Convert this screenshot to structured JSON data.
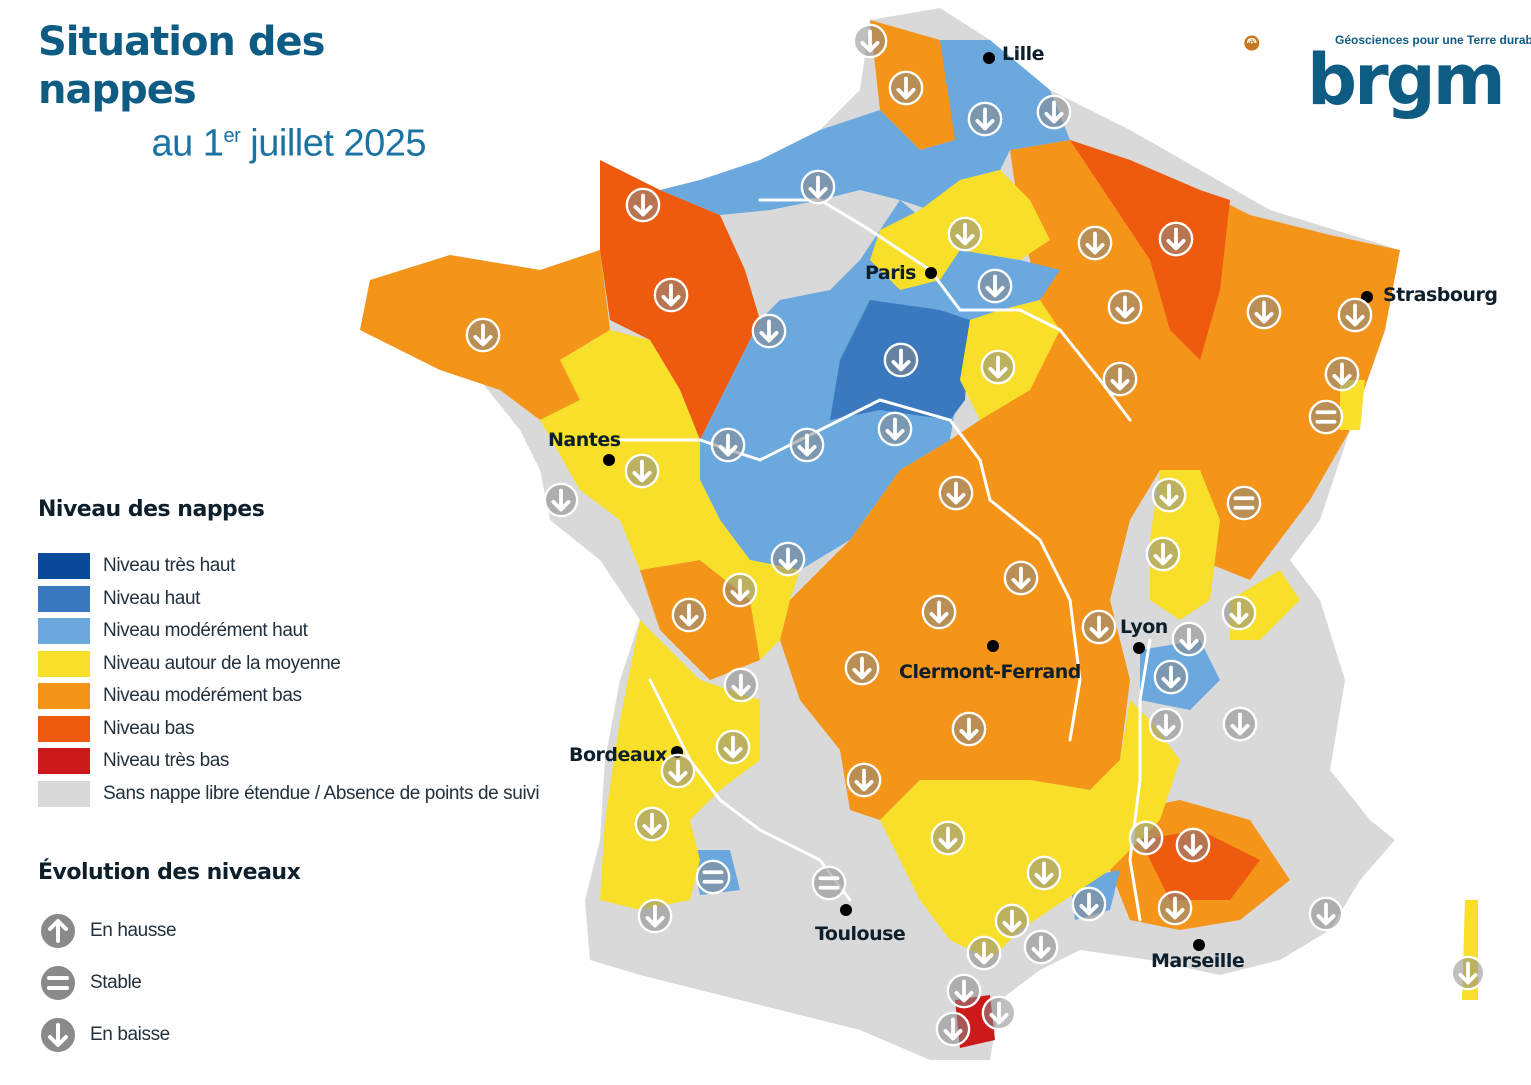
{
  "title": {
    "line1": "Situation des nappes",
    "line2_prefix": "au 1",
    "line2_sup": "er",
    "line2_suffix": " juillet 2025"
  },
  "logo": {
    "tagline": "Géosciences pour une Terre durable",
    "wordmark": "brgm",
    "colors": {
      "swirl": "#c8761c",
      "text": "#0e5c83"
    }
  },
  "legend_levels": {
    "title": "Niveau des nappes",
    "items": [
      {
        "label": "Niveau très haut",
        "color": "#0a4a9a"
      },
      {
        "label": "Niveau haut",
        "color": "#3a78bf"
      },
      {
        "label": "Niveau modérément haut",
        "color": "#6aa8de"
      },
      {
        "label": "Niveau autour de la moyenne",
        "color": "#f7df2a"
      },
      {
        "label": "Niveau modérément bas",
        "color": "#f49418"
      },
      {
        "label": "Niveau bas",
        "color": "#ee5b0e"
      },
      {
        "label": "Niveau très bas",
        "color": "#cc1a1a"
      },
      {
        "label": "Sans nappe libre étendue / Absence de points de suivi",
        "color": "#d9d9d9"
      }
    ]
  },
  "legend_evolution": {
    "title": "Évolution des niveaux",
    "items": [
      {
        "label": "En hausse",
        "icon": "arrow-up-icon"
      },
      {
        "label": "Stable",
        "icon": "equals-icon"
      },
      {
        "label": "En baisse",
        "icon": "arrow-down-icon"
      }
    ]
  },
  "cities": {
    "lille": "Lille",
    "paris": "Paris",
    "strasbourg": "Strasbourg",
    "nantes": "Nantes",
    "lyon": "Lyon",
    "clermont": "Clermont-Ferrand",
    "bordeaux": "Bordeaux",
    "toulouse": "Toulouse",
    "marseille": "Marseille"
  },
  "colors": {
    "river": "#ffffff",
    "marker_fill": "#8a8a8a",
    "marker_stroke": "#ffffff"
  }
}
